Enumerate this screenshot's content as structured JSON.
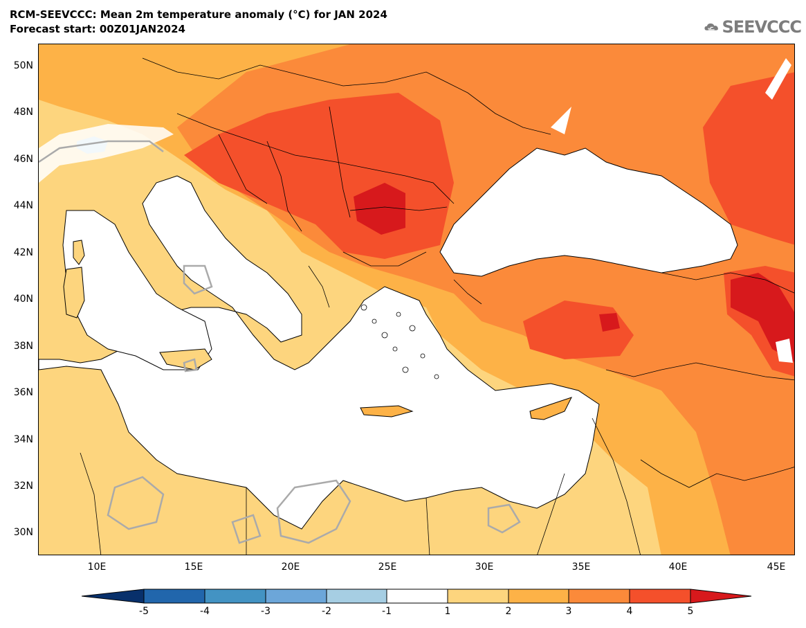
{
  "title": {
    "line1": "RCM-SEEVCCC: Mean 2m temperature anomaly (°C) for JAN 2024",
    "line2": "Forecast start: 00Z01JAN2024"
  },
  "logo": {
    "text": "SEEVCCC",
    "icon": "cloud-icon"
  },
  "lat_labels": [
    "50N",
    "48N",
    "46N",
    "44N",
    "42N",
    "40N",
    "38N",
    "36N",
    "34N",
    "32N",
    "30N"
  ],
  "lon_labels": [
    "10E",
    "15E",
    "20E",
    "25E",
    "30E",
    "35E",
    "40E",
    "45E"
  ],
  "colorbar": {
    "labels": [
      "-5",
      "-4",
      "-3",
      "-2",
      "-1",
      "1",
      "2",
      "3",
      "4",
      "5"
    ],
    "colors": [
      "#08306b",
      "#2166ac",
      "#4393c3",
      "#6ca6d9",
      "#a6cee3",
      "#ffffff",
      "#fdd57e",
      "#fdb247",
      "#fb8a3a",
      "#f4502b",
      "#d7191c"
    ]
  },
  "colors": {
    "sea": "#ffffff",
    "anom_1_2": "#fdd57e",
    "anom_2_3": "#fdb247",
    "anom_3_4": "#fb8a3a",
    "anom_4_5": "#f4502b",
    "anom_gt5": "#d7191c",
    "anom_neg": "#a6cee3",
    "borders": "#000000",
    "zero_contour": "#aaaaaa"
  }
}
